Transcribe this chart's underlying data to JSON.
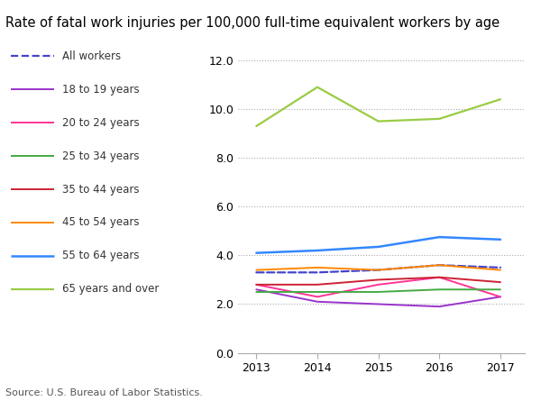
{
  "title": "Rate of fatal work injuries per 100,000 full-time equivalent workers by age",
  "years": [
    2013,
    2014,
    2015,
    2016,
    2017
  ],
  "series": [
    {
      "label": "All workers",
      "color": "#4444cc",
      "linestyle": "dashed",
      "linewidth": 1.6,
      "values": [
        3.3,
        3.3,
        3.4,
        3.6,
        3.5
      ]
    },
    {
      "label": "18 to 19 years",
      "color": "#9933cc",
      "linestyle": "solid",
      "linewidth": 1.4,
      "values": [
        2.6,
        2.1,
        2.0,
        1.9,
        2.3
      ]
    },
    {
      "label": "20 to 24 years",
      "color": "#ff3399",
      "linestyle": "solid",
      "linewidth": 1.4,
      "values": [
        2.8,
        2.3,
        2.8,
        3.1,
        2.3
      ]
    },
    {
      "label": "25 to 34 years",
      "color": "#44aa44",
      "linestyle": "solid",
      "linewidth": 1.4,
      "values": [
        2.5,
        2.5,
        2.5,
        2.6,
        2.6
      ]
    },
    {
      "label": "35 to 44 years",
      "color": "#cc2233",
      "linestyle": "solid",
      "linewidth": 1.4,
      "values": [
        2.8,
        2.8,
        3.0,
        3.1,
        2.9
      ]
    },
    {
      "label": "45 to 54 years",
      "color": "#ff8800",
      "linestyle": "solid",
      "linewidth": 1.4,
      "values": [
        3.4,
        3.5,
        3.4,
        3.6,
        3.4
      ]
    },
    {
      "label": "55 to 64 years",
      "color": "#3388ff",
      "linestyle": "solid",
      "linewidth": 1.8,
      "values": [
        4.1,
        4.2,
        4.35,
        4.75,
        4.65
      ]
    },
    {
      "label": "65 years and over",
      "color": "#99cc44",
      "linestyle": "solid",
      "linewidth": 1.6,
      "values": [
        9.3,
        10.9,
        9.5,
        9.6,
        10.4
      ]
    }
  ],
  "ylim": [
    0,
    12.5
  ],
  "yticks": [
    0.0,
    2.0,
    4.0,
    6.0,
    8.0,
    10.0,
    12.0
  ],
  "source_text": "Source: U.S. Bureau of Labor Statistics.",
  "background_color": "#ffffff",
  "grid_color": "#aaaaaa",
  "title_fontsize": 10.5,
  "legend_fontsize": 8.5,
  "tick_fontsize": 9
}
